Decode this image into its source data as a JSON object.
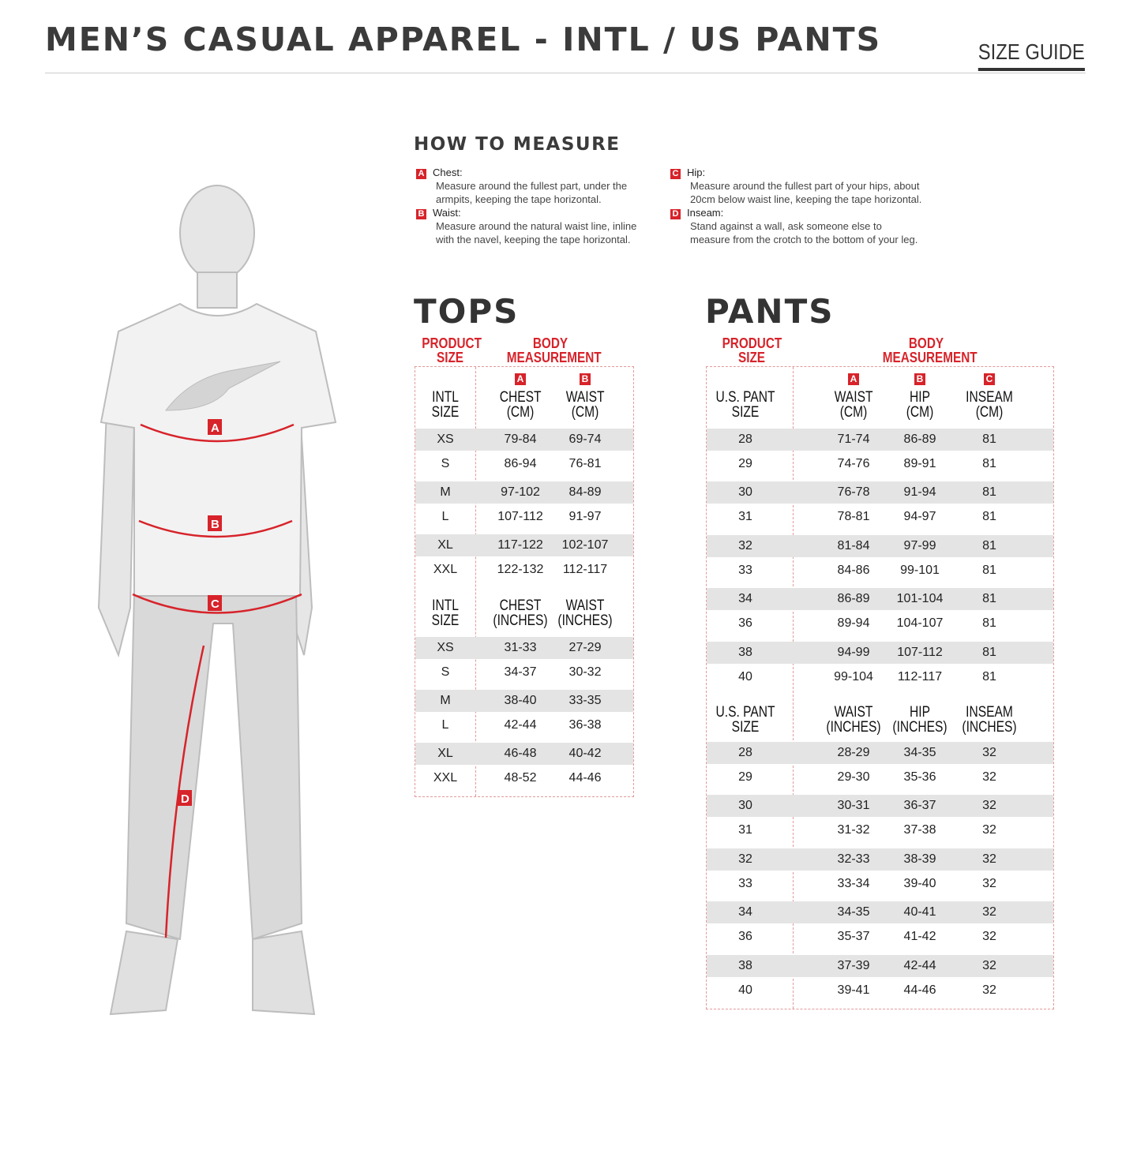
{
  "header": {
    "title": "MEN’S CASUAL APPAREL - INTL / US PANTS",
    "size_guide": "SIZE GUIDE"
  },
  "accent_color": "#d7232a",
  "figure": {
    "labels": [
      "A",
      "B",
      "C",
      "D"
    ]
  },
  "how_to_measure": {
    "title": "HOW TO MEASURE",
    "items": [
      {
        "letter": "A",
        "label": "Chest:",
        "text": "Measure around the fullest part, under the armpits, keeping the tape horizontal."
      },
      {
        "letter": "B",
        "label": "Waist:",
        "text": "Measure around the natural waist line, inline with the navel, keeping the tape horizontal."
      },
      {
        "letter": "C",
        "label": "Hip:",
        "text": "Measure around the fullest part of your hips, about 20cm below waist line, keeping the tape horizontal."
      },
      {
        "letter": "D",
        "label": "Inseam:",
        "text": "Stand against a wall, ask someone else to measure from the crotch to the bottom of your leg."
      }
    ]
  },
  "tops": {
    "title": "TOPS",
    "product_size": "PRODUCT SIZE",
    "body_measurement": "BODY MEASUREMENT",
    "cm": {
      "headers": [
        "INTL SIZE",
        "CHEST (CM)",
        "WAIST (CM)"
      ],
      "letters": [
        "",
        "A",
        "B"
      ],
      "rows": [
        [
          "XS",
          "79-84",
          "69-74"
        ],
        [
          "S",
          "86-94",
          "76-81"
        ],
        [
          "M",
          "97-102",
          "84-89"
        ],
        [
          "L",
          "107-112",
          "91-97"
        ],
        [
          "XL",
          "117-122",
          "102-107"
        ],
        [
          "XXL",
          "122-132",
          "112-117"
        ]
      ]
    },
    "inches": {
      "headers": [
        "INTL SIZE",
        "CHEST (INCHES)",
        "WAIST (INCHES)"
      ],
      "rows": [
        [
          "XS",
          "31-33",
          "27-29"
        ],
        [
          "S",
          "34-37",
          "30-32"
        ],
        [
          "M",
          "38-40",
          "33-35"
        ],
        [
          "L",
          "42-44",
          "36-38"
        ],
        [
          "XL",
          "46-48",
          "40-42"
        ],
        [
          "XXL",
          "48-52",
          "44-46"
        ]
      ]
    }
  },
  "pants": {
    "title": "PANTS",
    "product_size": "PRODUCT SIZE",
    "body_measurement": "BODY MEASUREMENT",
    "cm": {
      "headers": [
        "U.S. PANT SIZE",
        "WAIST (CM)",
        "HIP (CM)",
        "INSEAM (CM)"
      ],
      "letters": [
        "",
        "A",
        "B",
        "C"
      ],
      "rows": [
        [
          "28",
          "71-74",
          "86-89",
          "81"
        ],
        [
          "29",
          "74-76",
          "89-91",
          "81"
        ],
        [
          "30",
          "76-78",
          "91-94",
          "81"
        ],
        [
          "31",
          "78-81",
          "94-97",
          "81"
        ],
        [
          "32",
          "81-84",
          "97-99",
          "81"
        ],
        [
          "33",
          "84-86",
          "99-101",
          "81"
        ],
        [
          "34",
          "86-89",
          "101-104",
          "81"
        ],
        [
          "36",
          "89-94",
          "104-107",
          "81"
        ],
        [
          "38",
          "94-99",
          "107-112",
          "81"
        ],
        [
          "40",
          "99-104",
          "112-117",
          "81"
        ]
      ]
    },
    "inches": {
      "headers": [
        "U.S. PANT SIZE",
        "WAIST (INCHES)",
        "HIP (INCHES)",
        "INSEAM (INCHES)"
      ],
      "rows": [
        [
          "28",
          "28-29",
          "34-35",
          "32"
        ],
        [
          "29",
          "29-30",
          "35-36",
          "32"
        ],
        [
          "30",
          "30-31",
          "36-37",
          "32"
        ],
        [
          "31",
          "31-32",
          "37-38",
          "32"
        ],
        [
          "32",
          "32-33",
          "38-39",
          "32"
        ],
        [
          "33",
          "33-34",
          "39-40",
          "32"
        ],
        [
          "34",
          "34-35",
          "40-41",
          "32"
        ],
        [
          "36",
          "35-37",
          "41-42",
          "32"
        ],
        [
          "38",
          "37-39",
          "42-44",
          "32"
        ],
        [
          "40",
          "39-41",
          "44-46",
          "32"
        ]
      ]
    }
  }
}
